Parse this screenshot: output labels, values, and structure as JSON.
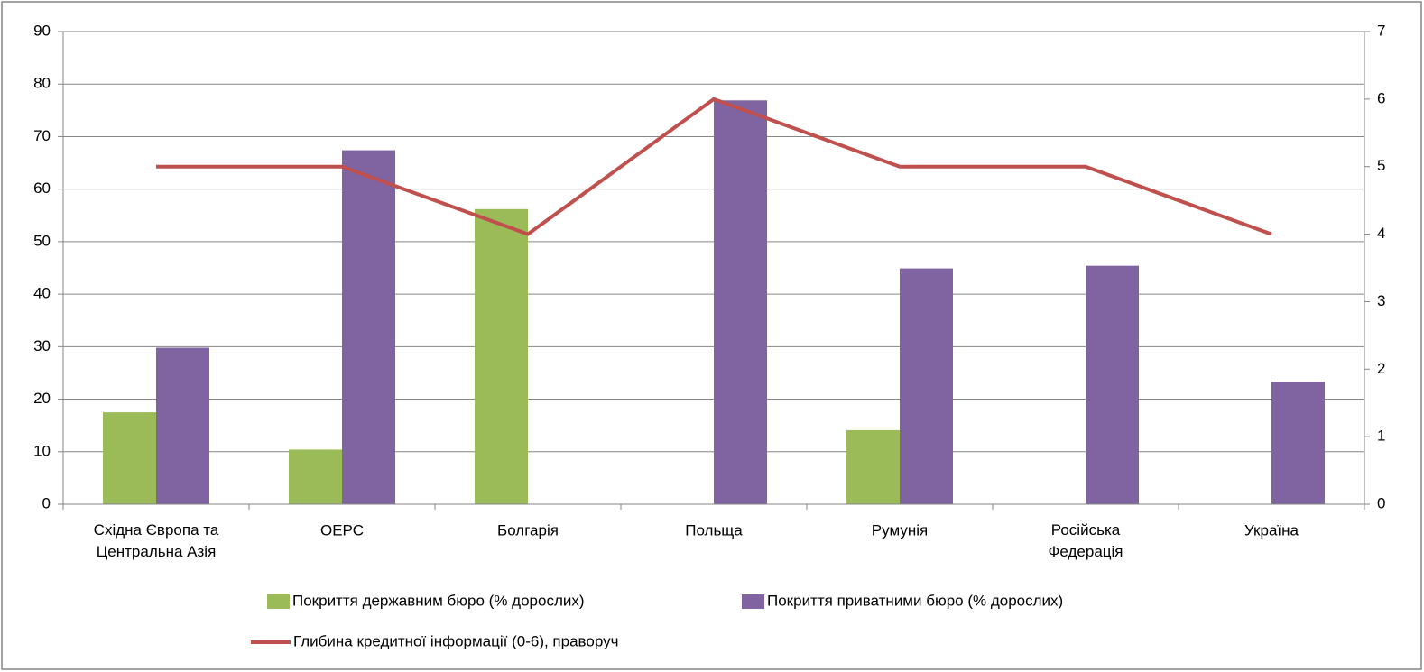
{
  "chart_data": {
    "type": "bar",
    "categories": [
      "Східна Європа та\nЦентральна Азія",
      "ОЕРС",
      "Болгарія",
      "Польща",
      "Румунія",
      "Російська\nФедерація",
      "Україна"
    ],
    "series": [
      {
        "name": "Покриття державним бюро (% дорослих)",
        "color": "#9bbb59",
        "type": "bar",
        "values": [
          17.5,
          10.4,
          56.2,
          null,
          14.1,
          null,
          null
        ]
      },
      {
        "name": "Покриття приватними бюро (% дорослих)",
        "color": "#8064a2",
        "type": "bar",
        "values": [
          29.8,
          67.4,
          null,
          76.9,
          44.9,
          45.4,
          23.3
        ]
      },
      {
        "name": "Глибина кредитної інформації (0-6), праворуч",
        "color": "#c0504d",
        "type": "line",
        "axis": "y2",
        "values": [
          5,
          5,
          4,
          6,
          5,
          5,
          4
        ]
      }
    ],
    "ylim": [
      0,
      90
    ],
    "yticks": [
      0,
      10,
      20,
      30,
      40,
      50,
      60,
      70,
      80,
      90
    ],
    "y2lim": [
      0,
      7
    ],
    "y2ticks": [
      0,
      1,
      2,
      3,
      4,
      5,
      6,
      7
    ],
    "grid": true,
    "legend": "bottom"
  }
}
